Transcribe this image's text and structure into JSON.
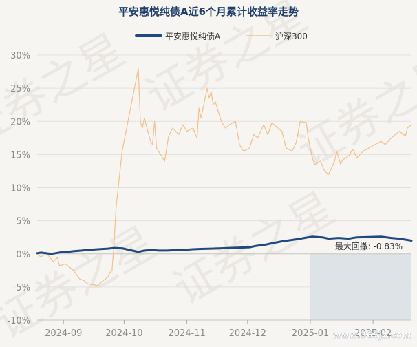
{
  "chart_data": {
    "type": "line",
    "title": "平安惠悦纯债A近6个月累计收益率走势",
    "watermark": "证券之星",
    "footer_watermark": "www.365jz.com",
    "ylim": [
      -10,
      30
    ],
    "yticks": [
      "30%",
      "25%",
      "20%",
      "15%",
      "10%",
      "5%",
      "0%",
      "-5%",
      "-10%"
    ],
    "xtick_labels": [
      "2024-09",
      "2024-10",
      "2024-11",
      "2024-12",
      "2025-01",
      "2025-02"
    ],
    "x_start": "2024-08-19",
    "x_end": "2025-02-20",
    "xtick_dates": [
      "2024-09-01",
      "2024-10-01",
      "2024-11-01",
      "2024-12-01",
      "2025-01-01",
      "2025-02-01"
    ],
    "annotation": {
      "label": "最大回撤: -0.83%",
      "start": "2025-01-01",
      "end": "2025-02-20",
      "color": "#c8d3dd"
    },
    "colors": {
      "fund": "#1f4a80",
      "index": "#f2c08a",
      "title": "#1f3e6b",
      "grid": "#e3e0dc",
      "axis_text": "#8a8a8a"
    },
    "series": [
      {
        "name": "平安惠悦纯债A",
        "color": "#1f4a80",
        "x": [
          "2024-08-19",
          "2024-08-21",
          "2024-08-23",
          "2024-08-26",
          "2024-08-28",
          "2024-08-30",
          "2024-09-03",
          "2024-09-06",
          "2024-09-10",
          "2024-09-13",
          "2024-09-18",
          "2024-09-23",
          "2024-09-26",
          "2024-09-30",
          "2024-10-08",
          "2024-10-11",
          "2024-10-15",
          "2024-10-18",
          "2024-10-22",
          "2024-10-25",
          "2024-10-30",
          "2024-11-04",
          "2024-11-08",
          "2024-11-13",
          "2024-11-18",
          "2024-11-22",
          "2024-11-27",
          "2024-12-02",
          "2024-12-05",
          "2024-12-10",
          "2024-12-13",
          "2024-12-18",
          "2024-12-23",
          "2024-12-27",
          "2025-01-02",
          "2025-01-07",
          "2025-01-10",
          "2025-01-15",
          "2025-01-20",
          "2025-01-24",
          "2025-02-05",
          "2025-02-10",
          "2025-02-14",
          "2025-02-18",
          "2025-02-20"
        ],
        "values": [
          0.1,
          0.2,
          0.1,
          0.0,
          0.1,
          0.2,
          0.3,
          0.4,
          0.5,
          0.6,
          0.7,
          0.8,
          0.9,
          0.85,
          0.3,
          0.5,
          0.6,
          0.5,
          0.5,
          0.55,
          0.6,
          0.7,
          0.75,
          0.8,
          0.85,
          0.9,
          0.95,
          1.0,
          1.2,
          1.4,
          1.6,
          1.9,
          2.1,
          2.3,
          2.6,
          2.5,
          2.3,
          2.4,
          2.3,
          2.5,
          2.6,
          2.4,
          2.3,
          2.1,
          2.0
        ]
      },
      {
        "name": "沪深300",
        "color": "#f2c08a",
        "x": [
          "2024-08-19",
          "2024-08-21",
          "2024-08-23",
          "2024-08-26",
          "2024-08-27",
          "2024-08-29",
          "2024-08-30",
          "2024-09-02",
          "2024-09-04",
          "2024-09-06",
          "2024-09-09",
          "2024-09-11",
          "2024-09-13",
          "2024-09-18",
          "2024-09-20",
          "2024-09-23",
          "2024-09-24",
          "2024-09-25",
          "2024-09-26",
          "2024-09-27",
          "2024-09-30",
          "2024-10-08",
          "2024-10-09",
          "2024-10-10",
          "2024-10-11",
          "2024-10-14",
          "2024-10-15",
          "2024-10-16",
          "2024-10-17",
          "2024-10-18",
          "2024-10-21",
          "2024-10-23",
          "2024-10-25",
          "2024-10-28",
          "2024-10-30",
          "2024-11-01",
          "2024-11-04",
          "2024-11-06",
          "2024-11-07",
          "2024-11-08",
          "2024-11-11",
          "2024-11-12",
          "2024-11-13",
          "2024-11-14",
          "2024-11-15",
          "2024-11-18",
          "2024-11-20",
          "2024-11-22",
          "2024-11-25",
          "2024-11-27",
          "2024-11-29",
          "2024-12-02",
          "2024-12-04",
          "2024-12-06",
          "2024-12-09",
          "2024-12-11",
          "2024-12-13",
          "2024-12-16",
          "2024-12-18",
          "2024-12-20",
          "2024-12-23",
          "2024-12-25",
          "2024-12-27",
          "2024-12-30",
          "2024-12-31",
          "2025-01-02",
          "2025-01-03",
          "2025-01-06",
          "2025-01-08",
          "2025-01-10",
          "2025-01-13",
          "2025-01-14",
          "2025-01-16",
          "2025-01-17",
          "2025-01-20",
          "2025-01-22",
          "2025-01-24",
          "2025-01-27",
          "2025-02-05",
          "2025-02-07",
          "2025-02-10",
          "2025-02-12",
          "2025-02-14",
          "2025-02-17",
          "2025-02-18",
          "2025-02-20"
        ],
        "values": [
          0.0,
          -0.5,
          0.3,
          -0.8,
          -1.2,
          -0.5,
          -1.8,
          -1.5,
          -2.0,
          -2.5,
          -3.8,
          -4.0,
          -4.5,
          -4.8,
          -4.2,
          -3.5,
          -2.8,
          -2.5,
          1.5,
          7.0,
          15.5,
          28.0,
          20.0,
          19.0,
          20.5,
          17.0,
          16.5,
          20.0,
          16.0,
          15.5,
          14.0,
          17.8,
          19.0,
          18.0,
          19.5,
          18.5,
          19.0,
          17.5,
          22.0,
          20.5,
          25.0,
          23.5,
          24.5,
          22.5,
          23.0,
          20.0,
          19.0,
          19.5,
          20.0,
          16.5,
          15.5,
          16.0,
          18.0,
          17.5,
          19.5,
          18.0,
          19.8,
          19.0,
          18.5,
          16.0,
          15.5,
          16.8,
          20.0,
          19.8,
          17.5,
          14.5,
          13.5,
          14.0,
          12.5,
          12.0,
          14.0,
          15.5,
          13.5,
          14.2,
          14.8,
          15.8,
          14.5,
          15.5,
          17.0,
          16.5,
          17.5,
          18.0,
          18.5,
          17.8,
          19.0,
          19.5
        ]
      }
    ]
  }
}
